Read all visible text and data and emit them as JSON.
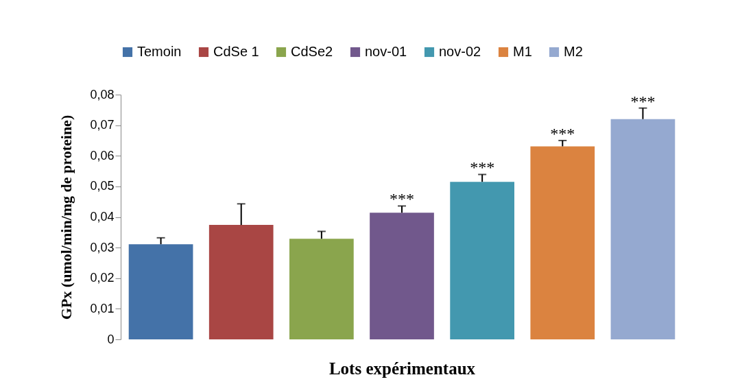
{
  "chart_data": {
    "type": "bar",
    "xlabel": "Lots expérimentaux",
    "ylabel": "GPx (umol/min/mg de proteine)",
    "categories": [
      null,
      null,
      null,
      null,
      null,
      null,
      null
    ],
    "series": [
      {
        "name": "Temoin",
        "color": "#4472a8",
        "values": [
          0.0311,
          null,
          null,
          null,
          null,
          null,
          null
        ],
        "errors": [
          [
            0.0311,
            0.0332
          ],
          null,
          null,
          null,
          null,
          null,
          null
        ]
      },
      {
        "name": "CdSe 1",
        "color": "#a94644",
        "values": [
          null,
          0.0374,
          null,
          null,
          null,
          null,
          null
        ],
        "errors": [
          null,
          [
            0.0374,
            0.0443
          ],
          null,
          null,
          null,
          null,
          null
        ]
      },
      {
        "name": "CdSe2",
        "color": "#8aa54d",
        "values": [
          null,
          null,
          0.0329,
          null,
          null,
          null,
          null
        ],
        "errors": [
          null,
          null,
          [
            0.0329,
            0.0353
          ],
          null,
          null,
          null,
          null
        ]
      },
      {
        "name": "nov-01",
        "color": "#71588c",
        "values": [
          null,
          null,
          null,
          0.0414,
          null,
          null,
          null
        ],
        "errors": [
          null,
          null,
          null,
          [
            0.0414,
            0.0436
          ],
          null,
          null,
          null
        ],
        "value_labels": [
          null,
          null,
          null,
          "***",
          null,
          null,
          null
        ]
      },
      {
        "name": "nov-02",
        "color": "#4398af",
        "values": [
          null,
          null,
          null,
          null,
          0.0515,
          null,
          null
        ],
        "errors": [
          null,
          null,
          null,
          null,
          [
            0.0515,
            0.0539
          ],
          null,
          null
        ],
        "value_labels": [
          null,
          null,
          null,
          null,
          "***",
          null,
          null
        ]
      },
      {
        "name": "M1",
        "color": "#db8340",
        "values": [
          null,
          null,
          null,
          null,
          null,
          0.0631,
          null
        ],
        "errors": [
          null,
          null,
          null,
          null,
          null,
          [
            0.0631,
            0.065
          ],
          null
        ],
        "value_labels": [
          null,
          null,
          null,
          null,
          null,
          "***",
          null
        ]
      },
      {
        "name": "M2",
        "color": "#95a9d0",
        "values": [
          null,
          null,
          null,
          null,
          null,
          null,
          0.072
        ],
        "errors": [
          null,
          null,
          null,
          null,
          null,
          null,
          [
            0.072,
            0.0756
          ]
        ],
        "value_labels": [
          null,
          null,
          null,
          null,
          null,
          null,
          "***"
        ]
      }
    ],
    "ylim": [
      0,
      0.08
    ],
    "yticks": [
      {
        "value": 0,
        "label": "0"
      },
      {
        "value": 0.01,
        "label": "0,01"
      },
      {
        "value": 0.02,
        "label": "0,02"
      },
      {
        "value": 0.03,
        "label": "0,03"
      },
      {
        "value": 0.04,
        "label": "0,04"
      },
      {
        "value": 0.05,
        "label": "0,05"
      },
      {
        "value": 0.06,
        "label": "0,06"
      },
      {
        "value": 0.07,
        "label": "0,07"
      },
      {
        "value": 0.08,
        "label": "0,08"
      }
    ],
    "stacked": true,
    "grid": false,
    "legend": "top",
    "tick_labels": "y"
  }
}
